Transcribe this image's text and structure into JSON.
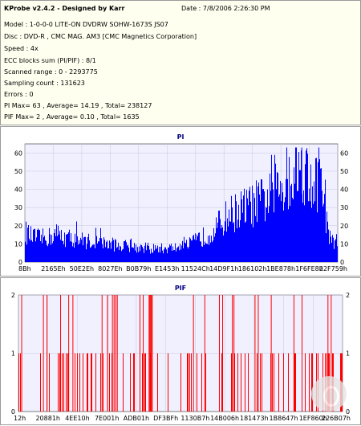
{
  "header": {
    "app_title": "KProbe v2.4.2 - Designed by Karr",
    "date_label": "Date : 7/8/2006 2:26:30 PM",
    "lines": [
      "Model : 1-0-0-0 LITE-ON DVDRW SOHW-1673S JS07",
      "Disc : DVD-R , CMC MAG. AM3 [CMC Magnetics Corporation]",
      "Speed : 4x",
      "ECC blocks sum (PI/PIF) : 8/1",
      "Scanned range : 0 - 2293775",
      "Sampling count : 131623",
      "Errors : 0",
      "PI Max= 63 , Average= 14.19 , Total= 238127",
      "PIF Max= 2 , Average= 0.10 , Total= 1635"
    ]
  },
  "chart_data": [
    {
      "type": "area",
      "title": "PI",
      "color": "#0000ff",
      "background": "#f0f0ff",
      "ylim": [
        0,
        65
      ],
      "y_ticks": [
        "0",
        "10",
        "20",
        "30",
        "40",
        "50",
        "60"
      ],
      "x_ticks": [
        "8Bh",
        "2165Eh",
        "50E2Eh",
        "8027Eh",
        "B0B79h",
        "E1453h",
        "11524Ch",
        "14D9F1h",
        "186102h",
        "1BE878h",
        "1F6FE8h",
        "22F759h"
      ],
      "max_value": 63,
      "average": 14.19,
      "envelope": [
        {
          "x": 0.0,
          "y": 18
        },
        {
          "x": 0.02,
          "y": 15
        },
        {
          "x": 0.05,
          "y": 14
        },
        {
          "x": 0.08,
          "y": 15
        },
        {
          "x": 0.1,
          "y": 17
        },
        {
          "x": 0.12,
          "y": 15
        },
        {
          "x": 0.15,
          "y": 14
        },
        {
          "x": 0.18,
          "y": 13
        },
        {
          "x": 0.22,
          "y": 12
        },
        {
          "x": 0.26,
          "y": 11
        },
        {
          "x": 0.3,
          "y": 10
        },
        {
          "x": 0.35,
          "y": 9
        },
        {
          "x": 0.4,
          "y": 8
        },
        {
          "x": 0.45,
          "y": 8
        },
        {
          "x": 0.5,
          "y": 9
        },
        {
          "x": 0.52,
          "y": 10
        },
        {
          "x": 0.55,
          "y": 13
        },
        {
          "x": 0.58,
          "y": 16
        },
        {
          "x": 0.6,
          "y": 19
        },
        {
          "x": 0.63,
          "y": 24
        },
        {
          "x": 0.65,
          "y": 28
        },
        {
          "x": 0.7,
          "y": 32
        },
        {
          "x": 0.74,
          "y": 35
        },
        {
          "x": 0.78,
          "y": 38
        },
        {
          "x": 0.8,
          "y": 42
        },
        {
          "x": 0.82,
          "y": 46
        },
        {
          "x": 0.85,
          "y": 52
        },
        {
          "x": 0.87,
          "y": 55
        },
        {
          "x": 0.89,
          "y": 57
        },
        {
          "x": 0.9,
          "y": 52
        },
        {
          "x": 0.92,
          "y": 48
        },
        {
          "x": 0.94,
          "y": 46
        },
        {
          "x": 0.95,
          "y": 44
        },
        {
          "x": 0.96,
          "y": 30
        },
        {
          "x": 0.97,
          "y": 14
        },
        {
          "x": 1.0,
          "y": 12
        }
      ]
    },
    {
      "type": "bar",
      "title": "PIF",
      "color": "#ff0000",
      "background": "#f0f0ff",
      "ylim": [
        0,
        2
      ],
      "y_ticks": [
        "0",
        "1",
        "2"
      ],
      "x_ticks": [
        "12h",
        "20881h",
        "4EE10h",
        "7E001h",
        "ADB01h",
        "DF3BFh",
        "1130B7h",
        "14B006h",
        "181473h",
        "1B8647h",
        "1EF860h",
        "226B07h"
      ],
      "max_value": 2,
      "average": 0.1,
      "spikes_2": [
        0.01,
        0.077,
        0.088,
        0.13,
        0.155,
        0.168,
        0.258,
        0.275,
        0.29,
        0.295,
        0.3,
        0.305,
        0.375,
        0.385,
        0.54,
        0.575,
        0.62,
        0.63,
        0.66,
        0.665,
        0.73,
        0.74,
        0.78,
        0.85,
        0.875,
        0.955,
        0.965
      ]
    }
  ]
}
